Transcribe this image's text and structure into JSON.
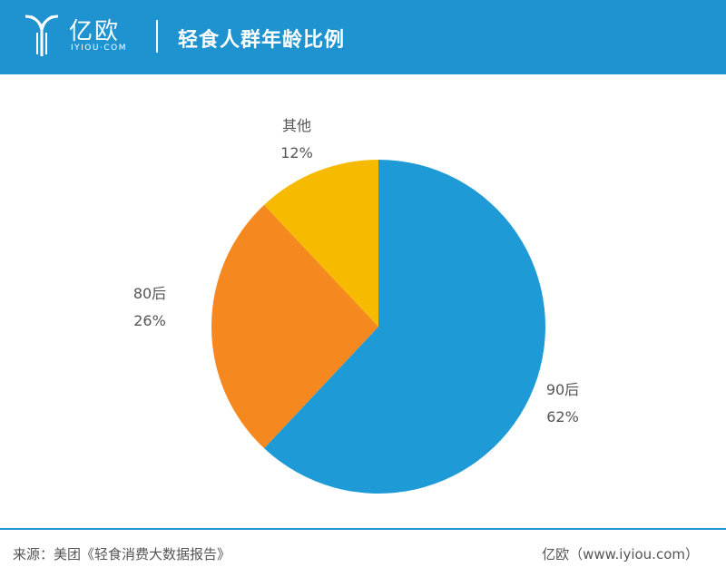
{
  "header": {
    "brand_name": "亿欧",
    "brand_sub": "IYIOU·COM",
    "title": "轻食人群年龄比例"
  },
  "colors": {
    "header_bg": "#1f93cf",
    "slice_90": "#1e9bd6",
    "slice_80": "#f5891f",
    "slice_other": "#f6bb00"
  },
  "chart_data": {
    "type": "pie",
    "title": "",
    "categories": [
      "90后",
      "80后",
      "其他"
    ],
    "values": [
      62,
      26,
      12
    ],
    "value_labels": [
      "62%",
      "26%",
      "12%"
    ],
    "start": "12 o'clock",
    "direction": "clockwise"
  },
  "footer": {
    "source": "来源：美团《轻食消费大数据报告》",
    "brand": "亿欧（www.iyiou.com）"
  }
}
